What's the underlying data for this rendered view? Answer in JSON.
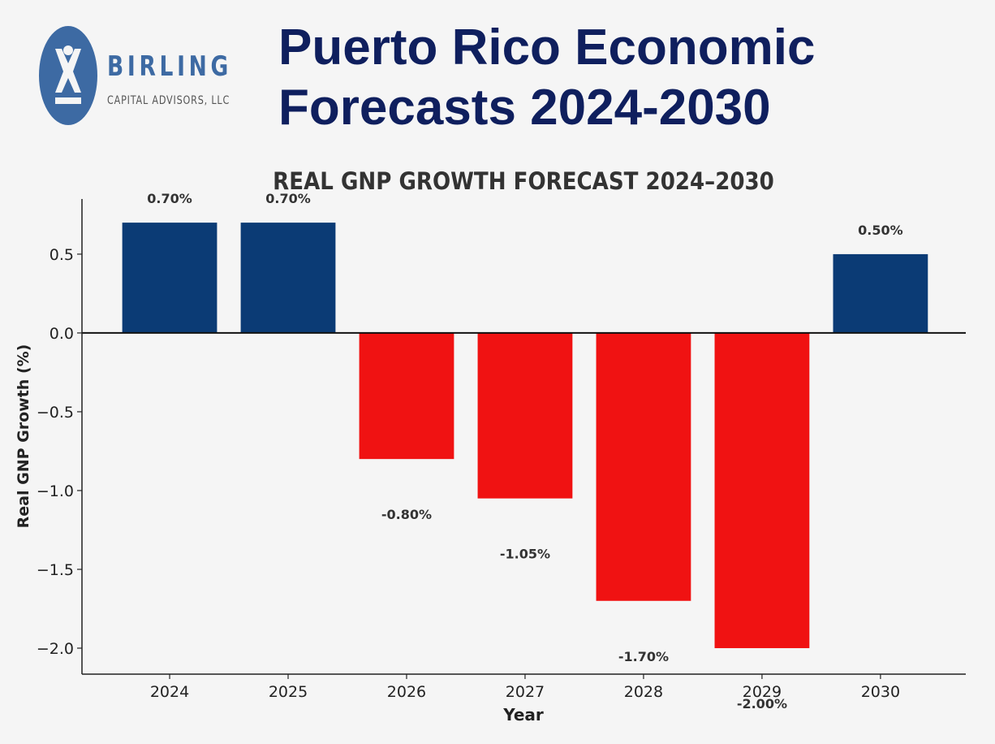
{
  "logo": {
    "name": "BIRLING",
    "subtitle": "CAPITAL ADVISORS, LLC",
    "color": "#3d6aa3"
  },
  "header": {
    "title_line1": "Puerto Rico Economic",
    "title_line2": "Forecasts 2024-2030",
    "color": "#0f1f5e"
  },
  "chart_data": {
    "type": "bar",
    "title": "REAL GNP GROWTH FORECAST 2024–2030",
    "xlabel": "Year",
    "ylabel": "Real GNP Growth (%)",
    "categories": [
      "2024",
      "2025",
      "2026",
      "2027",
      "2028",
      "2029",
      "2030"
    ],
    "values": [
      0.7,
      0.7,
      -0.8,
      -1.05,
      -1.7,
      -2.0,
      0.5
    ],
    "data_labels": [
      "0.70%",
      "0.70%",
      "-0.80%",
      "-1.05%",
      "-1.70%",
      "-2.00%",
      "0.50%"
    ],
    "yticks": [
      0.5,
      0.0,
      -0.5,
      -1.0,
      -1.5,
      -2.0
    ],
    "ytick_labels": [
      "0.5",
      "0.0",
      "−0.5",
      "−1.0",
      "−1.5",
      "−2.0"
    ],
    "ylim": [
      -2.165,
      0.85
    ],
    "grid": false,
    "colors": {
      "positive": "#0b3b75",
      "negative": "#f01212"
    }
  }
}
